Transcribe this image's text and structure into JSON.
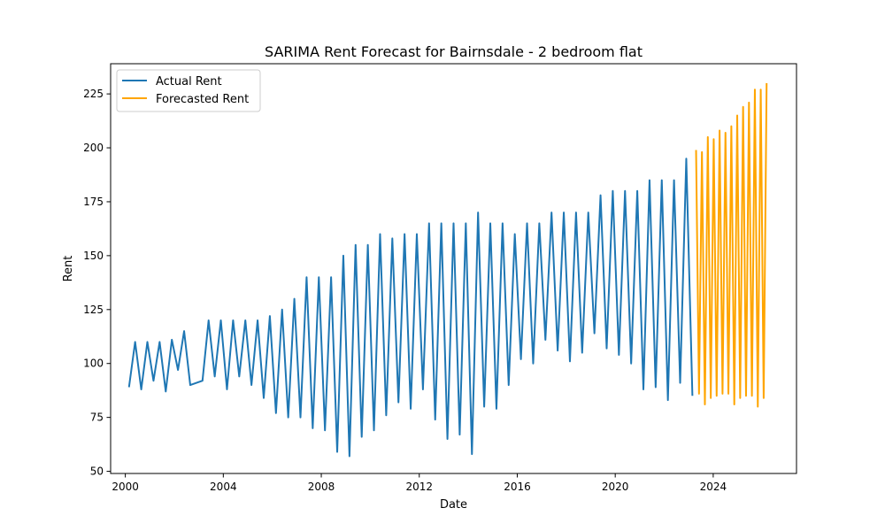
{
  "chart_data": {
    "type": "line",
    "title": "SARIMA Rent Forecast for Bairnsdale - 2 bedroom flat",
    "xlabel": "Date",
    "ylabel": "Rent",
    "xlim": [
      1999.4,
      2027.4
    ],
    "ylim": [
      49,
      239
    ],
    "x_ticks": [
      2000,
      2004,
      2008,
      2012,
      2016,
      2020,
      2024
    ],
    "x_tick_labels": [
      "2000",
      "2004",
      "2008",
      "2012",
      "2016",
      "2020",
      "2024"
    ],
    "y_ticks": [
      50,
      75,
      100,
      125,
      150,
      175,
      200,
      225
    ],
    "y_tick_labels": [
      "50",
      "75",
      "100",
      "125",
      "150",
      "175",
      "200",
      "225"
    ],
    "legend_position": "top-left",
    "grid": false,
    "series": [
      {
        "name": "Actual Rent",
        "color": "#1f77b4",
        "x": [
          2000.15,
          2000.4,
          2000.65,
          2000.9,
          2001.15,
          2001.4,
          2001.65,
          2001.9,
          2002.15,
          2002.4,
          2002.65,
          2003.15,
          2003.4,
          2003.65,
          2003.9,
          2004.15,
          2004.4,
          2004.65,
          2004.9,
          2005.15,
          2005.4,
          2005.65,
          2005.9,
          2006.15,
          2006.4,
          2006.65,
          2006.9,
          2007.15,
          2007.4,
          2007.65,
          2007.9,
          2008.15,
          2008.4,
          2008.65,
          2008.9,
          2009.15,
          2009.4,
          2009.65,
          2009.9,
          2010.15,
          2010.4,
          2010.65,
          2010.9,
          2011.15,
          2011.4,
          2011.65,
          2011.9,
          2012.15,
          2012.4,
          2012.65,
          2012.9,
          2013.15,
          2013.4,
          2013.65,
          2013.9,
          2014.15,
          2014.4,
          2014.65,
          2014.9,
          2015.15,
          2015.4,
          2015.65,
          2015.9,
          2016.15,
          2016.4,
          2016.65,
          2016.9,
          2017.15,
          2017.4,
          2017.65,
          2017.9,
          2018.15,
          2018.4,
          2018.65,
          2018.9,
          2019.15,
          2019.4,
          2019.65,
          2019.9,
          2020.15,
          2020.4,
          2020.65,
          2020.9,
          2021.15,
          2021.4,
          2021.65,
          2021.9,
          2022.15,
          2022.4,
          2022.65,
          2022.9,
          2023.15
        ],
        "values": [
          89,
          110,
          88,
          110,
          92,
          110,
          87,
          111,
          97,
          115,
          90,
          92,
          120,
          94,
          120,
          88,
          120,
          94,
          120,
          90,
          120,
          84,
          122,
          77,
          125,
          75,
          130,
          75,
          140,
          70,
          140,
          69,
          140,
          59,
          150,
          57,
          155,
          66,
          155,
          69,
          160,
          76,
          158,
          82,
          160,
          79,
          160,
          88,
          165,
          74,
          165,
          65,
          165,
          67,
          165,
          58,
          170,
          80,
          165,
          79,
          165,
          90,
          160,
          102,
          165,
          100,
          165,
          111,
          170,
          106,
          170,
          101,
          170,
          105,
          170,
          114,
          178,
          107,
          180,
          104,
          180,
          100,
          180,
          88,
          185,
          89,
          185,
          83,
          185,
          91,
          195,
          85
        ]
      },
      {
        "name": "Forecasted Rent",
        "color": "#ffa500",
        "x": [
          2023.3,
          2023.42,
          2023.54,
          2023.66,
          2023.78,
          2023.9,
          2024.02,
          2024.14,
          2024.26,
          2024.38,
          2024.5,
          2024.62,
          2024.74,
          2024.86,
          2024.98,
          2025.1,
          2025.22,
          2025.34,
          2025.46,
          2025.58,
          2025.7,
          2025.82,
          2025.94,
          2026.06,
          2026.18
        ],
        "values": [
          199,
          86,
          198,
          81,
          205,
          84,
          204,
          85,
          208,
          86,
          207,
          86,
          210,
          81,
          215,
          84,
          219,
          85,
          221,
          85,
          227,
          80,
          227,
          84,
          230
        ]
      }
    ]
  }
}
